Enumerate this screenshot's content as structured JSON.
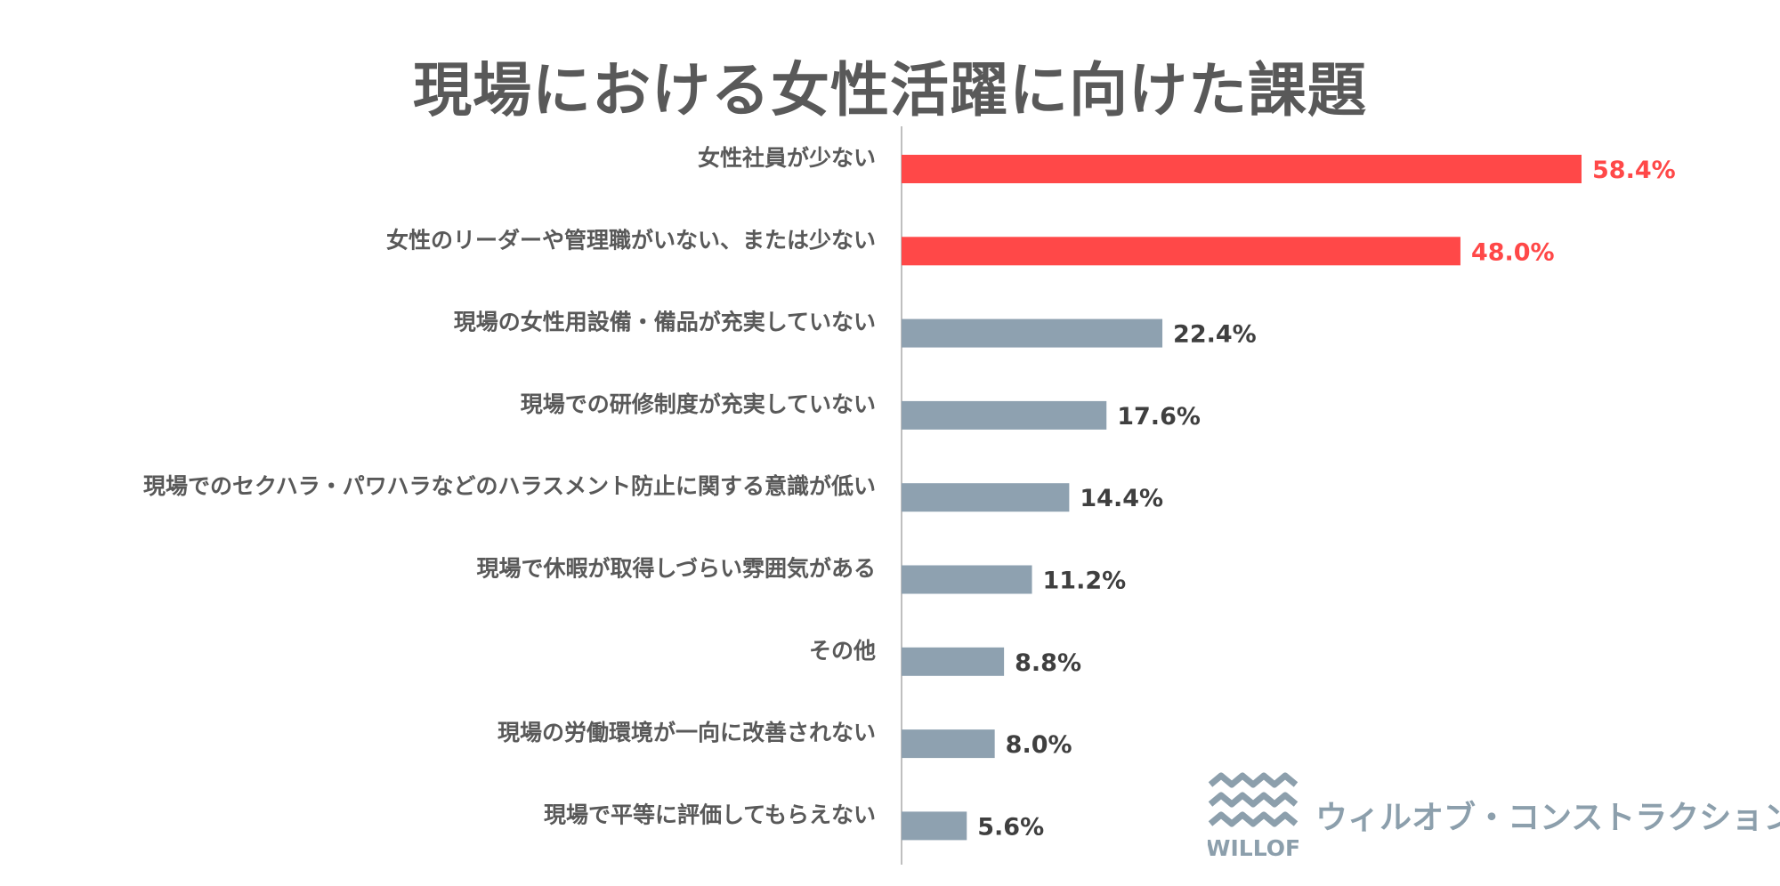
{
  "chart_data": {
    "type": "bar",
    "orientation": "horizontal",
    "title": "現場における女性活躍に向けた課題",
    "unit": "%",
    "categories": [
      "女性社員が少ない",
      "女性のリーダーや管理職がいない、または少ない",
      "現場の女性用設備・備品が充実していない",
      "現場での研修制度が充実していない",
      "現場でのセクハラ・パワハラなどのハラスメント防止に関する意識が低い",
      "現場で休暇が取得しづらい雰囲気がある",
      "その他",
      "現場の労働環境が一向に改善されない",
      "現場で平等に評価してもらえない"
    ],
    "values": [
      58.4,
      48.0,
      22.4,
      17.6,
      14.4,
      11.2,
      8.8,
      8.0,
      5.6
    ],
    "value_labels": [
      "58.4%",
      "48.0%",
      "22.4%",
      "17.6%",
      "14.4%",
      "11.2%",
      "8.8%",
      "8.0%",
      "5.6%"
    ],
    "highlight_count": 2,
    "xlim": [
      0,
      100
    ],
    "colors": {
      "highlight": "#ff4848",
      "default": "#8ea1b0",
      "axis": "#bfbfbf",
      "label_default": "#3f3f3f"
    }
  },
  "brand": {
    "logo_text": "WILLOF",
    "name": "ウィルオブ・コンストラクション",
    "color": "#8c9fac"
  }
}
